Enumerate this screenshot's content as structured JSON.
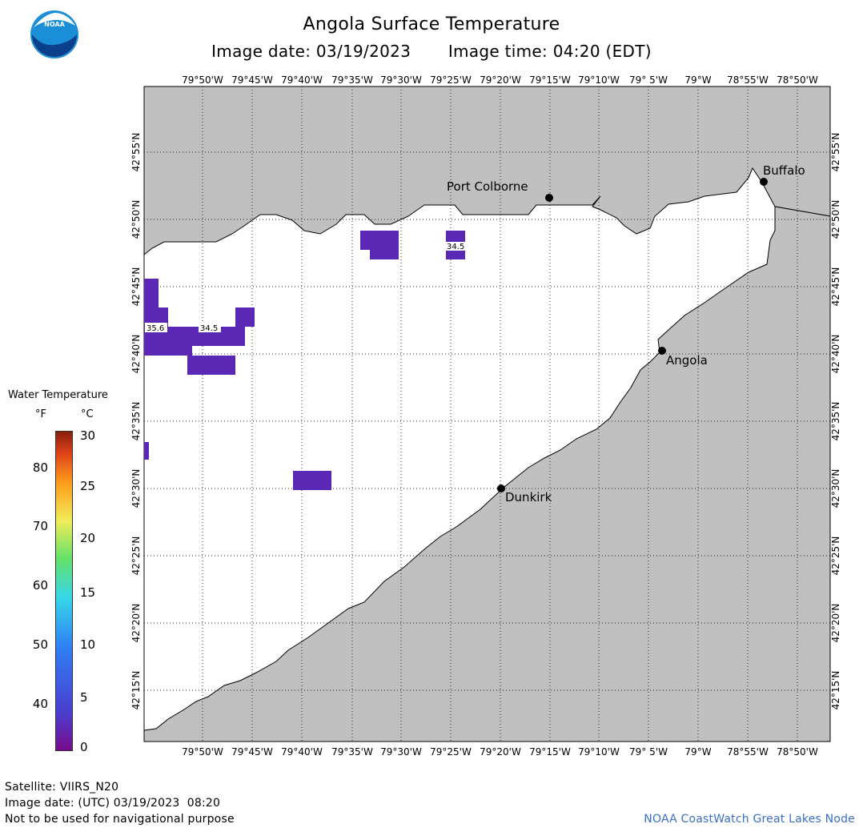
{
  "header": {
    "title": "Angola Surface Temperature",
    "image_date": "Image date: 03/19/2023",
    "image_time": "Image time: 04:20 (EDT)"
  },
  "logo": {
    "icon": "noaa-logo",
    "text": "NOAA"
  },
  "map": {
    "lon_ticks": [
      "79°50'W",
      "79°45'W",
      "79°40'W",
      "79°35'W",
      "79°30'W",
      "79°25'W",
      "79°20'W",
      "79°15'W",
      "79°10'W",
      "79° 5'W",
      "79°W",
      "78°55'W",
      "78°50'W"
    ],
    "lat_ticks": [
      "42°55'N",
      "42°50'N",
      "42°45'N",
      "42°40'N",
      "42°35'N",
      "42°30'N",
      "42°25'N",
      "42°20'N",
      "42°15'N"
    ],
    "land_color": "#c0c0c0",
    "water_color": "#ffffff",
    "cities": [
      {
        "name": "Port Colborne"
      },
      {
        "name": "Buffalo"
      },
      {
        "name": "Angola"
      },
      {
        "name": "Dunkirk"
      }
    ],
    "temperature_labels": [
      "35.6",
      "34.5",
      "34.5"
    ],
    "pixel_color": "#5a28b4"
  },
  "legend": {
    "title": "Water Temperature",
    "unit_f": "°F",
    "unit_c": "°C",
    "f_ticks": [
      "80",
      "70",
      "60",
      "50",
      "40"
    ],
    "c_ticks": [
      "30",
      "25",
      "20",
      "15",
      "10",
      "5",
      "0"
    ]
  },
  "footer": {
    "satellite": "Satellite: VIIRS_N20",
    "utc_date": "Image date: (UTC) 03/19/2023  08:20",
    "disclaimer": "Not to be used for navigational purpose",
    "credit": "NOAA CoastWatch Great Lakes Node"
  }
}
